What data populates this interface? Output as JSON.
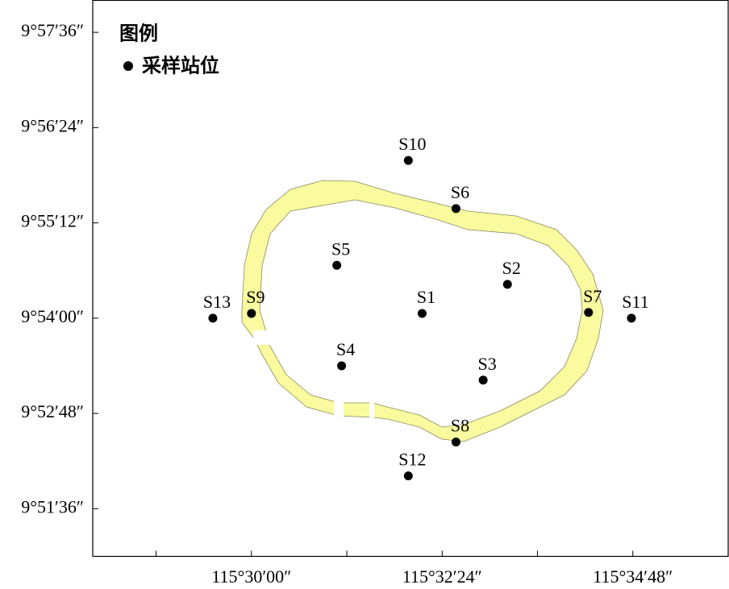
{
  "chart_data": {
    "type": "scatter",
    "legend_title": "图例",
    "xlim": [
      115.4667,
      115.6
    ],
    "ylim": [
      9.85,
      9.9667
    ],
    "xticks": [
      {
        "value": 115.48,
        "label": null
      },
      {
        "value": 115.5,
        "label": "115°30′00″"
      },
      {
        "value": 115.52,
        "label": null
      },
      {
        "value": 115.54,
        "label": "115°32′24″"
      },
      {
        "value": 115.56,
        "label": null
      },
      {
        "value": 115.58,
        "label": "115°34′48″"
      }
    ],
    "yticks": [
      {
        "value": 9.96,
        "label": "9°57′36″"
      },
      {
        "value": 9.94,
        "label": "9°56′24″"
      },
      {
        "value": 9.92,
        "label": "9°55′12″"
      },
      {
        "value": 9.9,
        "label": "9°54′00″"
      },
      {
        "value": 9.88,
        "label": "9°52′48″"
      },
      {
        "value": 9.86,
        "label": "9°51′36″"
      }
    ],
    "series": [
      {
        "name": "采样站位",
        "color": "#000000",
        "labels": [
          "S1",
          "S2",
          "S3",
          "S4",
          "S5",
          "S6",
          "S7",
          "S8",
          "S9",
          "S10",
          "S11",
          "S12",
          "S13"
        ],
        "x": [
          115.5358,
          115.5537,
          115.5486,
          115.5189,
          115.5179,
          115.5429,
          115.5707,
          115.5429,
          115.5,
          115.5329,
          115.5797,
          115.5329,
          115.4919
        ],
        "y": [
          9.901,
          9.9071,
          9.887,
          9.89,
          9.9111,
          9.923,
          9.9012,
          9.874,
          9.901,
          9.9331,
          9.9,
          9.8669,
          9.9
        ]
      }
    ]
  }
}
